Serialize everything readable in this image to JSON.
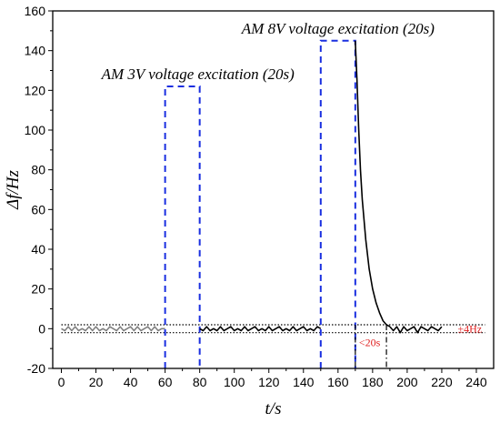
{
  "chart_data": {
    "type": "line",
    "title": "",
    "xlabel": "t/s",
    "ylabel": "Δf/Hz",
    "xlim": [
      -5,
      250
    ],
    "ylim": [
      -20,
      160
    ],
    "xticks": [
      0,
      20,
      40,
      60,
      80,
      100,
      120,
      140,
      160,
      180,
      200,
      220,
      240
    ],
    "yticks": [
      -20,
      0,
      20,
      40,
      60,
      80,
      100,
      120,
      140,
      160
    ],
    "grid": false,
    "legend": "none",
    "series": [
      {
        "color": "#808080",
        "x": [
          0,
          2,
          4,
          6,
          8,
          10,
          12,
          14,
          16,
          18,
          20,
          22,
          24,
          26,
          28,
          30,
          32,
          34,
          36,
          38,
          40,
          42,
          44,
          46,
          48,
          50,
          52,
          54,
          56,
          58,
          60
        ],
        "y": [
          0,
          -1,
          1,
          -1,
          1,
          -1,
          0,
          -1,
          1,
          -1,
          1,
          -1,
          0,
          -1,
          1,
          0,
          -1,
          1,
          -1,
          0,
          1,
          -1,
          1,
          -1,
          0,
          1,
          -1,
          1,
          -1,
          0,
          0
        ]
      },
      {
        "color": "#000000",
        "x": [
          80,
          82,
          84,
          86,
          88,
          90,
          92,
          94,
          96,
          98,
          100,
          102,
          104,
          106,
          108,
          110,
          112,
          114,
          116,
          118,
          120,
          122,
          124,
          126,
          128,
          130,
          132,
          134,
          136,
          138,
          140,
          142,
          144,
          146,
          148,
          150
        ],
        "y": [
          0,
          -1,
          1,
          -1,
          0,
          -1,
          1,
          -1,
          0,
          1,
          -1,
          0,
          -1,
          1,
          -1,
          0,
          1,
          -1,
          0,
          -1,
          1,
          -1,
          0,
          1,
          -1,
          0,
          -1,
          1,
          -1,
          0,
          1,
          -1,
          0,
          -1,
          1,
          0
        ]
      },
      {
        "color": "#000000",
        "x": [
          170,
          171,
          172,
          173,
          174,
          176,
          178,
          180,
          182,
          184,
          186,
          188,
          190
        ],
        "y": [
          145,
          125,
          100,
          80,
          65,
          45,
          30,
          20,
          13,
          8,
          4,
          2,
          1
        ]
      },
      {
        "color": "#000000",
        "x": [
          190,
          192,
          194,
          196,
          198,
          200,
          202,
          204,
          206,
          208,
          210,
          212,
          214,
          216,
          218,
          220
        ],
        "y": [
          1,
          -1,
          1,
          -2,
          1,
          -1,
          0,
          1,
          -2,
          1,
          0,
          -1,
          1,
          0,
          -1,
          1
        ]
      }
    ],
    "excitation_boxes": [
      {
        "label": "AM 3V voltage excitation (20s)",
        "x": [
          60,
          80
        ],
        "y_top": 122
      },
      {
        "label": "AM 8V voltage excitation (20s)",
        "x": [
          150,
          170
        ],
        "y_top": 145
      }
    ],
    "tolerance_band": {
      "label": "±4Hz",
      "y": [
        2,
        -2
      ],
      "x": [
        0,
        245
      ]
    },
    "duration_marker": {
      "label": "<20s",
      "x": [
        170,
        188
      ]
    }
  }
}
